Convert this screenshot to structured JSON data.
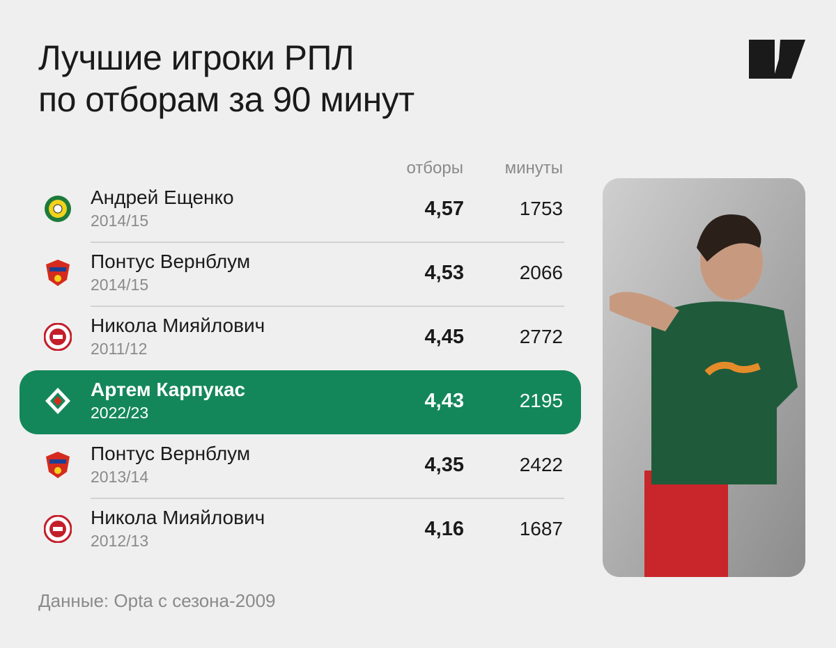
{
  "header": {
    "title_lines": [
      "Лучшие игроки РПЛ",
      "по отборам за 90 минут"
    ]
  },
  "table": {
    "columns": [
      "отборы",
      "минуты"
    ],
    "rows": [
      {
        "club": "kuban",
        "name": "Андрей Ещенко",
        "season": "2014/15",
        "tackles": "4,57",
        "minutes": "1753"
      },
      {
        "club": "cska",
        "name": "Понтус Вернблум",
        "season": "2014/15",
        "tackles": "4,53",
        "minutes": "2066"
      },
      {
        "club": "arsenal",
        "name": "Никола Мияйлович",
        "season": "2011/12",
        "tackles": "4,45",
        "minutes": "2772"
      },
      {
        "club": "lokomotiv",
        "name": "Артем Карпукас",
        "season": "2022/23",
        "tackles": "4,43",
        "minutes": "2195",
        "highlight": true
      },
      {
        "club": "cska",
        "name": "Понтус Вернблум",
        "season": "2013/14",
        "tackles": "4,35",
        "minutes": "2422"
      },
      {
        "club": "arsenal",
        "name": "Никола Мияйлович",
        "season": "2012/13",
        "tackles": "4,16",
        "minutes": "1687"
      }
    ],
    "highlight_color": "#14875a"
  },
  "footer": {
    "source": "Данные: Opta с сезона-2009"
  }
}
